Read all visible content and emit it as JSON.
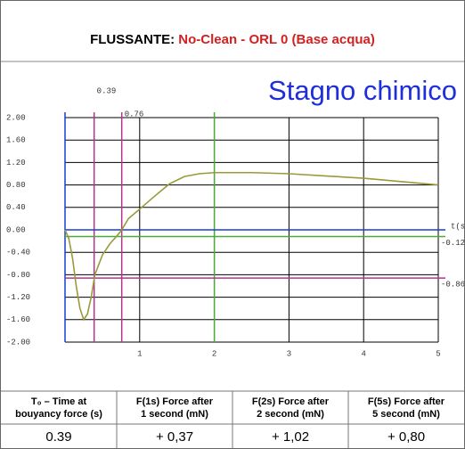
{
  "header": {
    "title_prefix": "FLUSSANTE:",
    "title_rest": "No-Clean - ORL 0 (Base acqua)"
  },
  "subtitle": "Stagno chimico",
  "chart_data": {
    "type": "line",
    "x": [
      0,
      0.05,
      0.1,
      0.15,
      0.2,
      0.25,
      0.3,
      0.35,
      0.4,
      0.5,
      0.6,
      0.7,
      0.76,
      0.85,
      1,
      1.2,
      1.4,
      1.6,
      1.8,
      2,
      2.5,
      3,
      3.5,
      4,
      4.5,
      5
    ],
    "series": [
      {
        "color": "#9a9a3a",
        "values": [
          0,
          -0.15,
          -0.5,
          -1.0,
          -1.4,
          -1.6,
          -1.5,
          -1.2,
          -0.8,
          -0.45,
          -0.25,
          -0.1,
          0,
          0.2,
          0.37,
          0.6,
          0.82,
          0.95,
          1.0,
          1.02,
          1.02,
          1.0,
          0.96,
          0.92,
          0.86,
          0.8
        ]
      }
    ],
    "xlim": [
      0,
      5
    ],
    "ylim": [
      -2,
      2
    ],
    "xticks": [
      1,
      2,
      3,
      4,
      5
    ],
    "yticks": [
      {
        "value": 2,
        "label": "2.00"
      },
      {
        "value": 1.6,
        "label": "1.60"
      },
      {
        "value": 1.2,
        "label": "1.20"
      },
      {
        "value": 0.8,
        "label": "0.80"
      },
      {
        "value": 0.4,
        "label": "0.40"
      },
      {
        "value": 0,
        "label": "0.00"
      },
      {
        "value": -0.4,
        "label": "-0.40"
      },
      {
        "value": -0.8,
        "label": "-0.80"
      },
      {
        "value": -1.2,
        "label": "-1.20"
      },
      {
        "value": -1.6,
        "label": "-1.60"
      },
      {
        "value": -2,
        "label": "-2.00"
      }
    ],
    "x_label": "t(s)",
    "grid": true,
    "grid_color": "#000000",
    "vlines": [
      {
        "x": 0,
        "color": "#1a3fd0"
      },
      {
        "x": 0.39,
        "label": "0.39",
        "color": "#b8328f"
      },
      {
        "x": 0.76,
        "label": "0.76",
        "color": "#b8328f"
      },
      {
        "x": 2,
        "color": "#4caa3a"
      }
    ],
    "hlines": [
      {
        "y": 0,
        "color": "#1a3fd0"
      },
      {
        "y": -0.12,
        "label": "-0.12",
        "color": "#4caa3a"
      },
      {
        "y": -0.86,
        "label": "-0.86",
        "color": "#b8328f"
      }
    ]
  },
  "table": {
    "header": [
      [
        "T₀ – Time at",
        "bouyancy force (s)"
      ],
      [
        "F(1s) Force after",
        "1 second (mN)"
      ],
      [
        "F(2s) Force after",
        "2 second (mN)"
      ],
      [
        "F(5s) Force after",
        "5 second (mN)"
      ]
    ],
    "rows": [
      [
        "0.39",
        "+ 0,37",
        "+ 1,02",
        "+ 0,80"
      ]
    ]
  }
}
